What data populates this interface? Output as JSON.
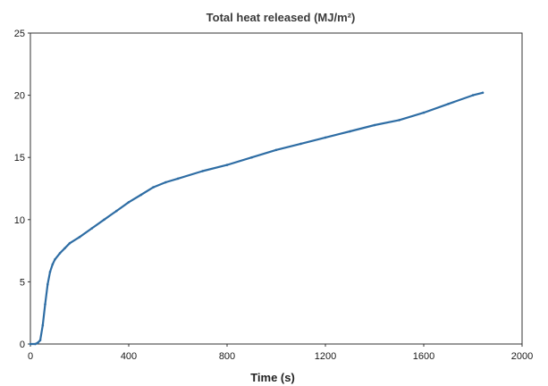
{
  "chart_data": {
    "type": "line",
    "title": "Total heat released (MJ/m²)",
    "xlabel": "Time (s)",
    "ylabel": "",
    "xlim": [
      0,
      2000
    ],
    "ylim": [
      0,
      25
    ],
    "xticks": [
      0,
      400,
      800,
      1200,
      1600,
      2000
    ],
    "yticks": [
      0,
      5,
      10,
      15,
      20,
      25
    ],
    "grid": false,
    "colors": {
      "line": "#2e6da4"
    },
    "series": [
      {
        "x": [
          0,
          20,
          30,
          40,
          50,
          60,
          70,
          80,
          90,
          100,
          120,
          140,
          160,
          200,
          250,
          300,
          350,
          400,
          450,
          500,
          550,
          600,
          700,
          800,
          900,
          1000,
          1100,
          1200,
          1300,
          1400,
          1500,
          1600,
          1700,
          1800,
          1840
        ],
        "y": [
          0,
          0,
          0.1,
          0.3,
          1.5,
          3.2,
          4.8,
          5.8,
          6.4,
          6.8,
          7.3,
          7.7,
          8.1,
          8.6,
          9.3,
          10.0,
          10.7,
          11.4,
          12.0,
          12.6,
          13.0,
          13.3,
          13.9,
          14.4,
          15.0,
          15.6,
          16.1,
          16.6,
          17.1,
          17.6,
          18.0,
          18.6,
          19.3,
          20.0,
          20.2
        ]
      }
    ]
  }
}
